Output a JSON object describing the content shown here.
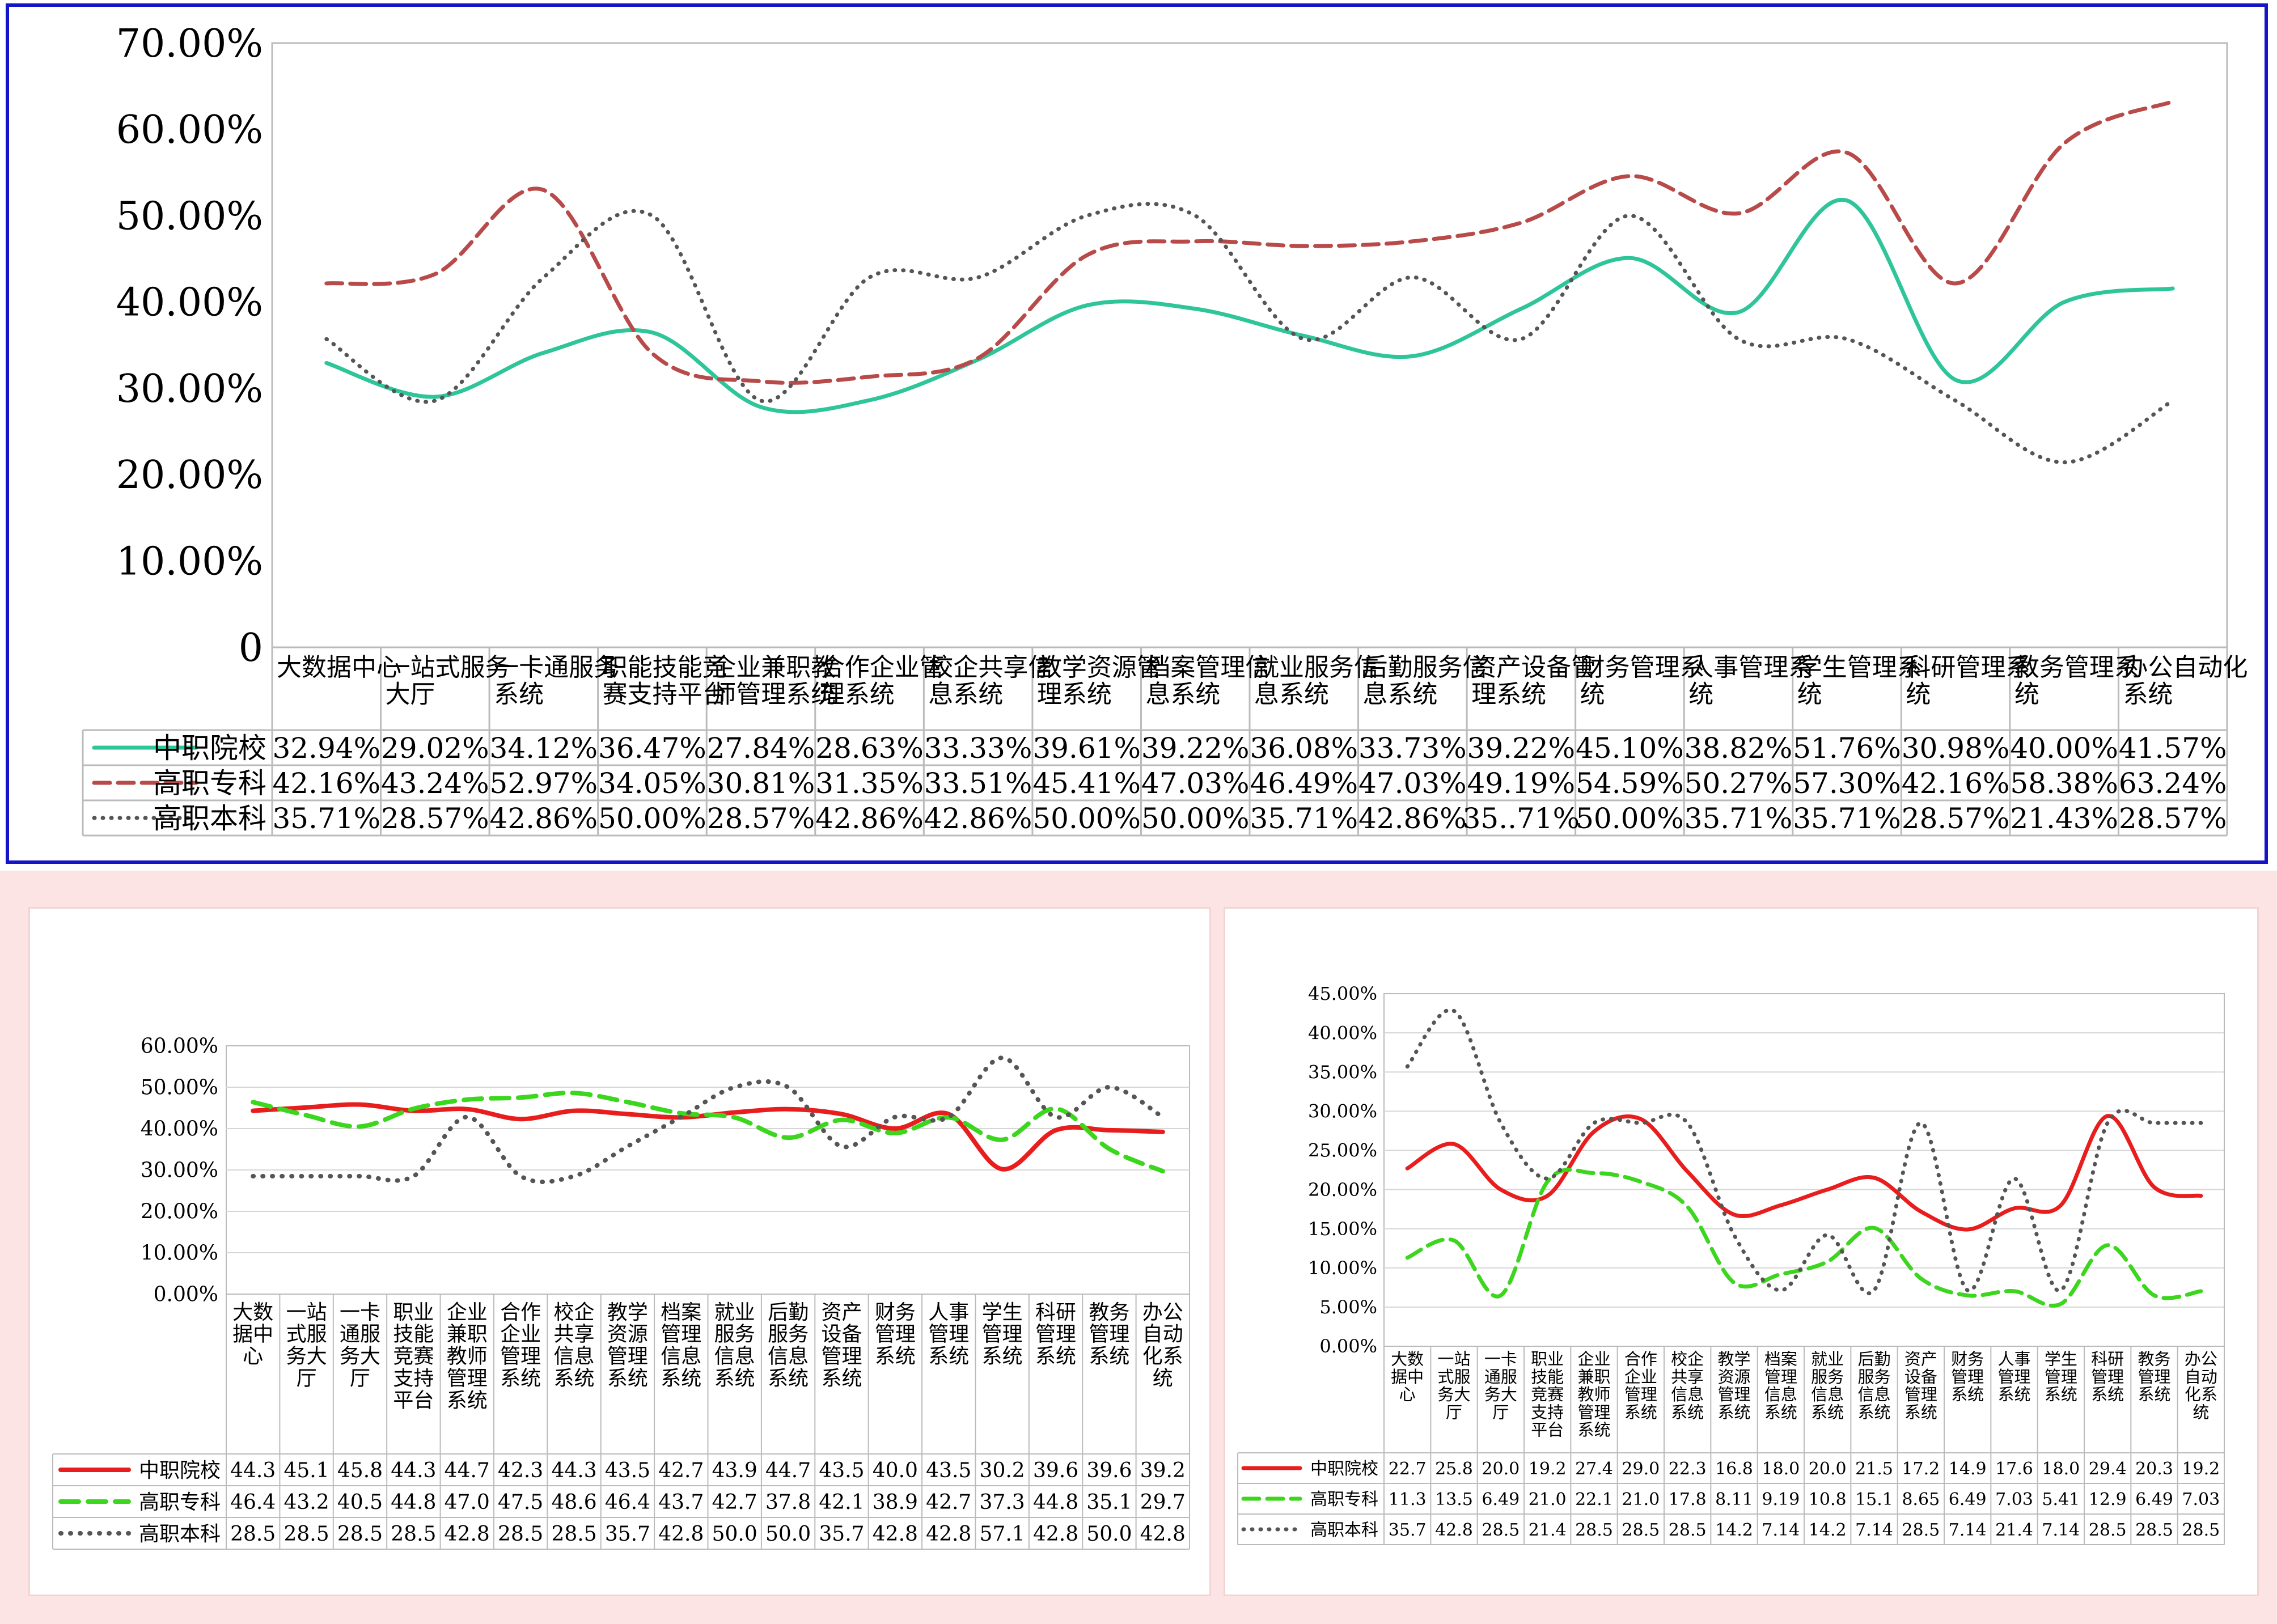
{
  "chart_data": [
    {
      "type": "line",
      "ylim": [
        0,
        0.7
      ],
      "y_ticks": [
        "0",
        "10.00%",
        "20.00%",
        "30.00%",
        "40.00%",
        "50.00%",
        "60.00%",
        "70.00%"
      ],
      "categories": [
        "大数据中心",
        "一站式服务大厅",
        "一卡通服务系统",
        "职能技能竞赛支持平台",
        "企业兼职教师管理系统",
        "合作企业管理系统",
        "校企共享信息系统",
        "教学资源管理系统",
        "档案管理信息系统",
        "就业服务信息系统",
        "后勤服务信息系统",
        "资产设备管理系统",
        "财务管理系统",
        "人事管理系统",
        "学生管理系统",
        "科研管理系统",
        "教务管理系统",
        "办公自动化系统"
      ],
      "series": [
        {
          "name": "中职院校",
          "color": "#2fc59a",
          "style": "solid",
          "values": [
            0.3294,
            0.2902,
            0.3412,
            0.3647,
            0.2784,
            0.2863,
            0.3333,
            0.3961,
            0.3922,
            0.3608,
            0.3373,
            0.3922,
            0.451,
            0.3882,
            0.5176,
            0.3098,
            0.4,
            0.4157
          ],
          "labels": [
            "32.94%",
            "29.02%",
            "34.12%",
            "36.47%",
            "27.84%",
            "28.63%",
            "33.33%",
            "39.61%",
            "39.22%",
            "36.08%",
            "33.73%",
            "39.22%",
            "45.10%",
            "38.82%",
            "51.76%",
            "30.98%",
            "40.00%",
            "41.57%"
          ]
        },
        {
          "name": "高职专科",
          "color": "#b84a4a",
          "style": "dashed",
          "values": [
            0.4216,
            0.4324,
            0.5297,
            0.3405,
            0.3081,
            0.3135,
            0.3351,
            0.4541,
            0.4703,
            0.4649,
            0.4703,
            0.4919,
            0.5459,
            0.5027,
            0.573,
            0.4216,
            0.5838,
            0.6324
          ],
          "labels": [
            "42.16%",
            "43.24%",
            "52.97%",
            "34.05%",
            "30.81%",
            "31.35%",
            "33.51%",
            "45.41%",
            "47.03%",
            "46.49%",
            "47.03%",
            "49.19%",
            "54.59%",
            "50.27%",
            "57.30%",
            "42.16%",
            "58.38%",
            "63.24%"
          ]
        },
        {
          "name": "高职本科",
          "color": "#555555",
          "style": "dotted",
          "values": [
            0.3571,
            0.2857,
            0.4286,
            0.5,
            0.2857,
            0.4286,
            0.4286,
            0.5,
            0.5,
            0.3571,
            0.4286,
            0.3571,
            0.5,
            0.3571,
            0.3571,
            0.2857,
            0.2143,
            0.2857
          ],
          "labels": [
            "35.71%",
            "28.57%",
            "42.86%",
            "50.00%",
            "28.57%",
            "42.86%",
            "42.86%",
            "50.00%",
            "50.00%",
            "35.71%",
            "42.86%",
            "35..71%",
            "50.00%",
            "35.71%",
            "35.71%",
            "28.57%",
            "21.43%",
            "28.57%"
          ]
        }
      ]
    },
    {
      "type": "line",
      "ylim": [
        0,
        60
      ],
      "y_ticks": [
        "0.00%",
        "10.00%",
        "20.00%",
        "30.00%",
        "40.00%",
        "50.00%",
        "60.00%"
      ],
      "categories": [
        "大数据中心",
        "一站式服务大厅",
        "一卡通服务大厅",
        "职业技能竞赛支持平台",
        "企业兼职教师管理系统",
        "合作企业管理系统",
        "校企共享信息系统",
        "教学资源管理系统",
        "档案管理信息系统",
        "就业服务信息系统",
        "后勤服务信息系统",
        "资产设备管理系统",
        "财务管理系统",
        "人事管理系统",
        "学生管理系统",
        "科研管理系统",
        "教务管理系统",
        "办公自动化系统"
      ],
      "series": [
        {
          "name": "中职院校",
          "color": "#e81e1e",
          "style": "solid",
          "values": [
            44.3,
            45.1,
            45.8,
            44.3,
            44.7,
            42.3,
            44.3,
            43.5,
            42.7,
            43.9,
            44.7,
            43.5,
            40.0,
            43.5,
            30.2,
            39.6,
            39.6,
            39.2
          ],
          "labels": [
            "44.3",
            "45.1",
            "45.8",
            "44.3",
            "44.7",
            "42.3",
            "44.3",
            "43.5",
            "42.7",
            "43.9",
            "44.7",
            "43.5",
            "40.0",
            "43.5",
            "30.2",
            "39.6",
            "39.6",
            "39.2"
          ]
        },
        {
          "name": "高职专科",
          "color": "#3cd61e",
          "style": "dashed",
          "values": [
            46.4,
            43.2,
            40.5,
            44.8,
            47.0,
            47.5,
            48.6,
            46.4,
            43.7,
            42.7,
            37.8,
            42.1,
            38.9,
            42.7,
            37.3,
            44.8,
            35.1,
            29.7
          ],
          "labels": [
            "46.4",
            "43.2",
            "40.5",
            "44.8",
            "47.0",
            "47.5",
            "48.6",
            "46.4",
            "43.7",
            "42.7",
            "37.8",
            "42.1",
            "38.9",
            "42.7",
            "37.3",
            "44.8",
            "35.1",
            "29.7"
          ]
        },
        {
          "name": "高职本科",
          "color": "#555555",
          "style": "dotted",
          "values": [
            28.5,
            28.5,
            28.5,
            28.5,
            42.8,
            28.5,
            28.5,
            35.7,
            42.8,
            50.0,
            50.0,
            35.7,
            42.8,
            42.8,
            57.1,
            42.8,
            50.0,
            42.8
          ],
          "labels": [
            "28.5",
            "28.5",
            "28.5",
            "28.5",
            "42.8",
            "28.5",
            "28.5",
            "35.7",
            "42.8",
            "50.0",
            "50.0",
            "35.7",
            "42.8",
            "42.8",
            "57.1",
            "42.8",
            "50.0",
            "42.8"
          ]
        }
      ]
    },
    {
      "type": "line",
      "ylim": [
        0,
        45
      ],
      "y_ticks": [
        "0.00%",
        "5.00%",
        "10.00%",
        "15.00%",
        "20.00%",
        "25.00%",
        "30.00%",
        "35.00%",
        "40.00%",
        "45.00%"
      ],
      "categories": [
        "大数据中心",
        "一站式服务大厅",
        "一卡通服务大厅",
        "职业技能竞赛支持平台",
        "企业兼职教师管理系统",
        "合作企业管理系统",
        "校企共享信息系统",
        "教学资源管理系统",
        "档案管理信息系统",
        "就业服务信息系统",
        "后勤服务信息系统",
        "资产设备管理系统",
        "财务管理系统",
        "人事管理系统",
        "学生管理系统",
        "科研管理系统",
        "教务管理系统",
        "办公自动化系统"
      ],
      "series": [
        {
          "name": "中职院校",
          "color": "#e81e1e",
          "style": "solid",
          "values": [
            22.7,
            25.8,
            20.0,
            19.2,
            27.4,
            29.0,
            22.3,
            16.8,
            18.0,
            20.0,
            21.5,
            17.2,
            14.9,
            17.6,
            18.0,
            29.4,
            20.3,
            19.2
          ],
          "labels": [
            "22.7",
            "25.8",
            "20.0",
            "19.2",
            "27.4",
            "29.0",
            "22.3",
            "16.8",
            "18.0",
            "20.0",
            "21.5",
            "17.2",
            "14.9",
            "17.6",
            "18.0",
            "29.4",
            "20.3",
            "19.2"
          ]
        },
        {
          "name": "高职专科",
          "color": "#3cd61e",
          "style": "dashed",
          "values": [
            11.3,
            13.5,
            6.49,
            21.0,
            22.1,
            21.0,
            17.8,
            8.11,
            9.19,
            10.8,
            15.1,
            8.65,
            6.49,
            7.03,
            5.41,
            12.9,
            6.49,
            7.03
          ],
          "labels": [
            "11.3",
            "13.5",
            "6.49",
            "21.0",
            "22.1",
            "21.0",
            "17.8",
            "8.11",
            "9.19",
            "10.8",
            "15.1",
            "8.65",
            "6.49",
            "7.03",
            "5.41",
            "12.9",
            "6.49",
            "7.03"
          ]
        },
        {
          "name": "高职本科",
          "color": "#555555",
          "style": "dotted",
          "values": [
            35.7,
            42.8,
            28.5,
            21.4,
            28.5,
            28.5,
            28.5,
            14.2,
            7.14,
            14.2,
            7.14,
            28.5,
            7.14,
            21.4,
            7.14,
            28.5,
            28.5,
            28.5
          ],
          "labels": [
            "35.7",
            "42.8",
            "28.5",
            "21.4",
            "28.5",
            "28.5",
            "28.5",
            "14.2",
            "7.14",
            "14.2",
            "7.14",
            "28.5",
            "7.14",
            "21.4",
            "7.14",
            "28.5",
            "28.5",
            "28.5"
          ]
        }
      ]
    }
  ]
}
